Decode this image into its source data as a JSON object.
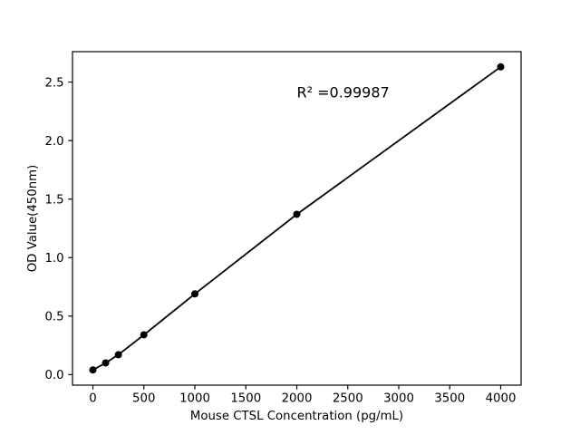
{
  "window": {
    "background": "#ffffff"
  },
  "chart_data": {
    "type": "line",
    "title": "",
    "xlabel": "Mouse CTSL Concentration (pg/mL)",
    "ylabel": "OD Value(450nm)",
    "annotation": {
      "text": "R² =0.99987",
      "x": 2000,
      "y": 2.37
    },
    "x": [
      0,
      125,
      250,
      500,
      1000,
      2000,
      4000
    ],
    "y": [
      0.04,
      0.1,
      0.17,
      0.34,
      0.69,
      1.37,
      2.63
    ],
    "xlim": [
      -200,
      4200
    ],
    "ylim": [
      -0.09,
      2.76
    ],
    "x_ticks": [
      0,
      500,
      1000,
      1500,
      2000,
      2500,
      3000,
      3500,
      4000
    ],
    "x_tick_labels": [
      "0",
      "500",
      "1000",
      "1500",
      "2000",
      "2500",
      "3000",
      "3500",
      "4000"
    ],
    "y_ticks": [
      0,
      0.5,
      1.0,
      1.5,
      2.0,
      2.5
    ],
    "y_tick_labels": [
      "0.0",
      "0.5",
      "1.0",
      "1.5",
      "2.0",
      "2.5"
    ],
    "grid": false,
    "legend": false,
    "marker": "circle",
    "marker_size_px": 8,
    "line_color": "#000000",
    "marker_color": "#000000",
    "axis_color": "#000000",
    "text_color": "#000000"
  }
}
